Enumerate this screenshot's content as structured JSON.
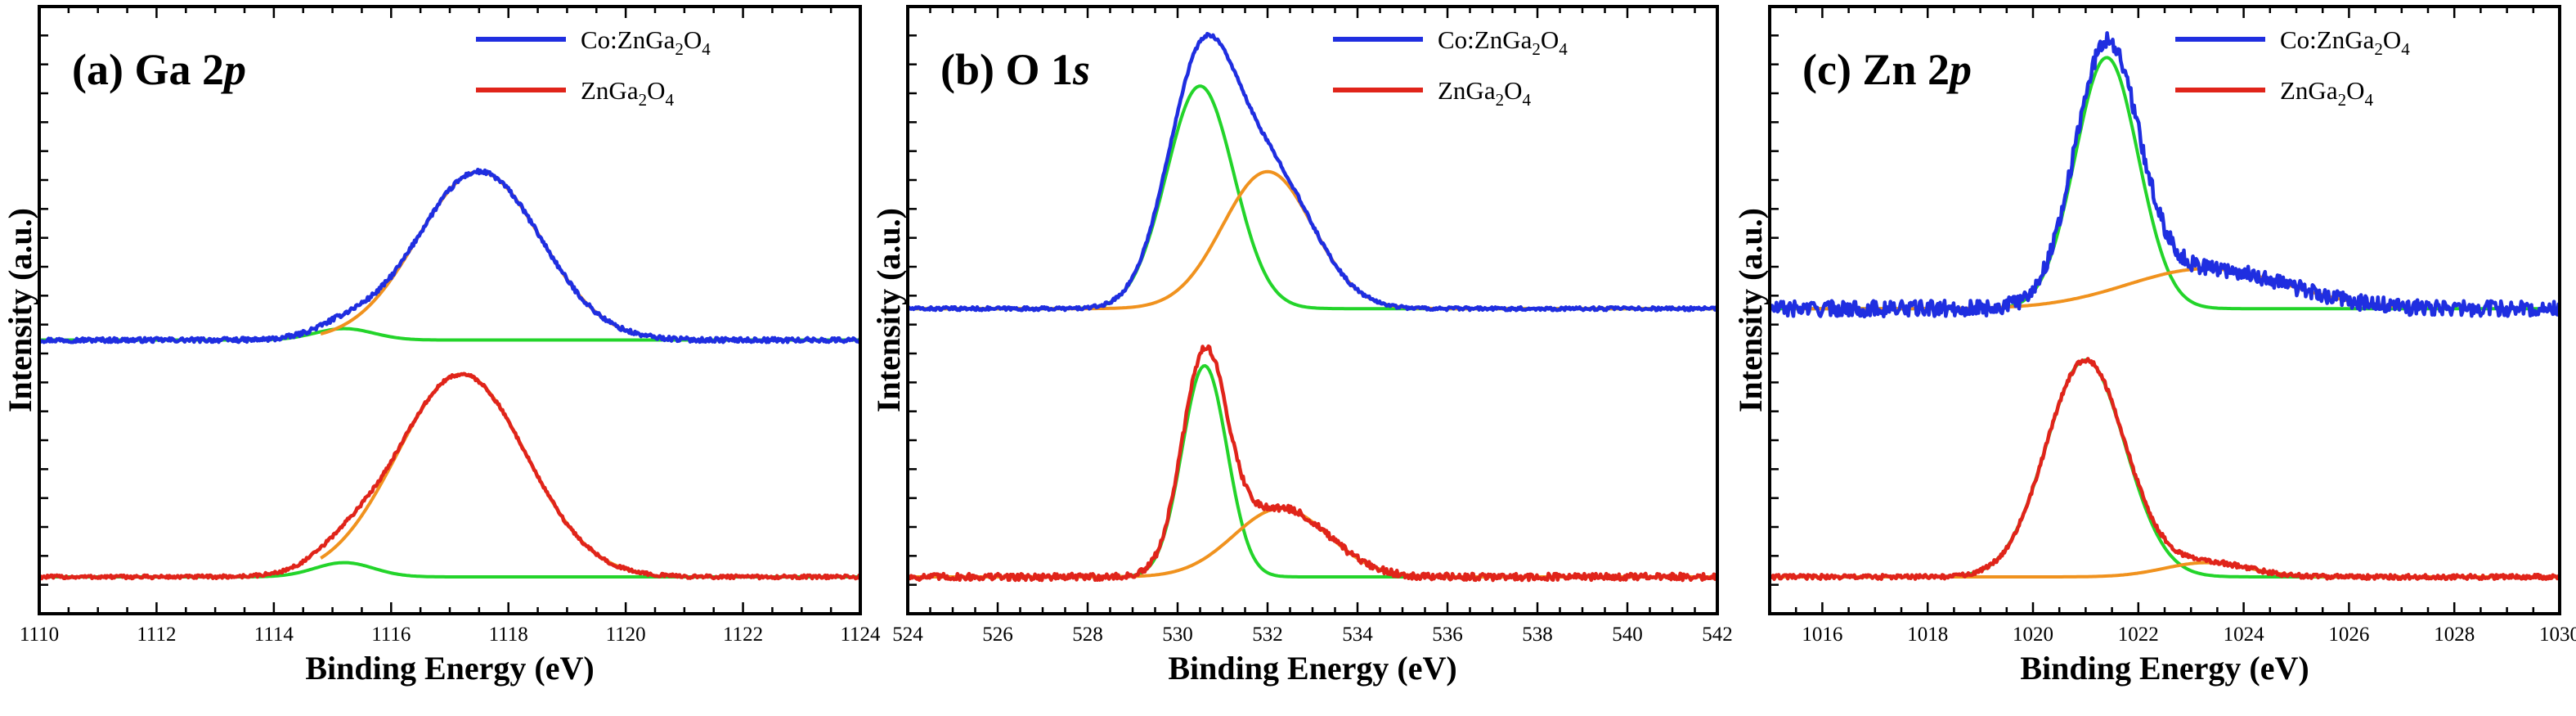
{
  "colors": {
    "co_doped": "#1f2ee0",
    "undoped": "#e0241a",
    "component_low": "#23d42a",
    "component_high": "#f0921e",
    "frame": "#000000"
  },
  "chart_data": [
    {
      "type": "line",
      "panel_label": "(a) Ga 2p",
      "panel_label_parts": [
        "(a) Ga 2",
        "p"
      ],
      "xlabel": "Binding Energy (eV)",
      "ylabel": "Intensity (a.u.)",
      "xlim": [
        1110,
        1124
      ],
      "xticks": [
        1110,
        1112,
        1114,
        1116,
        1118,
        1120,
        1122,
        1124
      ],
      "xtick_labels": [
        "1110",
        "1112",
        "1114",
        "1116",
        "1118",
        "1120",
        "1122",
        "1124"
      ],
      "y_ticks_labeled": false,
      "legend": {
        "placement": "top-right",
        "entries": [
          {
            "series": "co_doped",
            "parts": [
              "Co:ZnGa",
              "2",
              "O",
              "4"
            ]
          },
          {
            "series": "undoped",
            "parts": [
              "ZnGa",
              "2",
              "O",
              "4"
            ]
          }
        ]
      },
      "series": [
        {
          "name": "Co:ZnGa2O4",
          "role": "co_doped",
          "offset": 0.415,
          "peaks": [
            {
              "center": 1117.5,
              "height": 0.295,
              "sigma": 1.05
            },
            {
              "center": 1115.2,
              "height": 0.02,
              "sigma": 0.5
            }
          ],
          "noise": 0.004
        },
        {
          "name": "ZnGa2O4",
          "role": "undoped",
          "offset": 0.0,
          "peaks": [
            {
              "center": 1117.2,
              "height": 0.355,
              "sigma": 1.1
            },
            {
              "center": 1115.2,
              "height": 0.025,
              "sigma": 0.5
            }
          ],
          "noise": 0.003
        }
      ],
      "components": [
        {
          "role": "component_low",
          "offset": 0.415,
          "peaks": [
            {
              "center": 1115.2,
              "height": 0.02,
              "sigma": 0.5
            }
          ]
        },
        {
          "role": "component_low",
          "offset": 0.0,
          "peaks": [
            {
              "center": 1115.2,
              "height": 0.025,
              "sigma": 0.5
            }
          ]
        },
        {
          "role": "component_high",
          "offset": 0.415,
          "peaks": [
            {
              "center": 1117.5,
              "height": 0.295,
              "sigma": 1.05
            }
          ],
          "xmin": 1114.8,
          "xmax": 1120.2
        },
        {
          "role": "component_high",
          "offset": 0.0,
          "peaks": [
            {
              "center": 1117.2,
              "height": 0.355,
              "sigma": 1.1
            }
          ],
          "xmin": 1114.8,
          "xmax": 1120.2
        }
      ]
    },
    {
      "type": "line",
      "panel_label": "(b) O 1s",
      "panel_label_parts": [
        "(b) O 1",
        "s"
      ],
      "xlabel": "Binding Energy (eV)",
      "ylabel": "Intensity (a.u.)",
      "xlim": [
        524,
        542
      ],
      "xticks": [
        524,
        526,
        528,
        530,
        532,
        534,
        536,
        538,
        540,
        542
      ],
      "xtick_labels": [
        "524",
        "526",
        "528",
        "530",
        "532",
        "534",
        "536",
        "538",
        "540",
        "542"
      ],
      "y_ticks_labeled": false,
      "legend": {
        "placement": "top-right",
        "entries": [
          {
            "series": "co_doped",
            "parts": [
              "Co:ZnGa",
              "2",
              "O",
              "4"
            ]
          },
          {
            "series": "undoped",
            "parts": [
              "ZnGa",
              "2",
              "O",
              "4"
            ]
          }
        ]
      },
      "series": [
        {
          "name": "Co:ZnGa2O4",
          "role": "co_doped",
          "offset": 0.47,
          "peaks": [
            {
              "center": 530.5,
              "height": 0.39,
              "sigma": 0.75
            },
            {
              "center": 532.0,
              "height": 0.24,
              "sigma": 1.0
            }
          ],
          "noise": 0.003
        },
        {
          "name": "ZnGa2O4",
          "role": "undoped",
          "offset": 0.0,
          "peaks": [
            {
              "center": 530.6,
              "height": 0.37,
              "sigma": 0.5
            },
            {
              "center": 532.3,
              "height": 0.12,
              "sigma": 1.05
            }
          ],
          "noise": 0.006
        }
      ],
      "components": [
        {
          "role": "component_low",
          "offset": 0.47,
          "peaks": [
            {
              "center": 530.5,
              "height": 0.39,
              "sigma": 0.75
            }
          ]
        },
        {
          "role": "component_high",
          "offset": 0.47,
          "peaks": [
            {
              "center": 532.0,
              "height": 0.24,
              "sigma": 1.0
            }
          ]
        },
        {
          "role": "component_low",
          "offset": 0.0,
          "peaks": [
            {
              "center": 530.6,
              "height": 0.37,
              "sigma": 0.5
            }
          ]
        },
        {
          "role": "component_high",
          "offset": 0.0,
          "peaks": [
            {
              "center": 532.3,
              "height": 0.12,
              "sigma": 1.05
            }
          ]
        }
      ]
    },
    {
      "type": "line",
      "panel_label": "(c) Zn 2p",
      "panel_label_parts": [
        "(c) Zn 2",
        "p"
      ],
      "xlabel": "Binding Energy (eV)",
      "ylabel": "Intensity (a.u.)",
      "xlim": [
        1015,
        1030
      ],
      "xticks": [
        1016,
        1018,
        1020,
        1022,
        1024,
        1026,
        1028,
        1030
      ],
      "xtick_labels": [
        "1016",
        "1018",
        "1020",
        "1022",
        "1024",
        "1026",
        "1028",
        "1030"
      ],
      "y_ticks_labeled": false,
      "legend": {
        "placement": "top-right",
        "entries": [
          {
            "series": "co_doped",
            "parts": [
              "Co:ZnGa",
              "2",
              "O",
              "4"
            ]
          },
          {
            "series": "undoped",
            "parts": [
              "ZnGa",
              "2",
              "O",
              "4"
            ]
          }
        ]
      },
      "series": [
        {
          "name": "Co:ZnGa2O4",
          "role": "co_doped",
          "offset": 0.47,
          "peaks": [
            {
              "center": 1021.4,
              "height": 0.44,
              "sigma": 0.6
            },
            {
              "center": 1023.3,
              "height": 0.07,
              "sigma": 1.5
            }
          ],
          "noise": 0.014
        },
        {
          "name": "ZnGa2O4",
          "role": "undoped",
          "offset": 0.0,
          "peaks": [
            {
              "center": 1021.0,
              "height": 0.38,
              "sigma": 0.75
            },
            {
              "center": 1023.3,
              "height": 0.025,
              "sigma": 0.8
            }
          ],
          "noise": 0.004
        }
      ],
      "components": [
        {
          "role": "component_low",
          "offset": 0.47,
          "peaks": [
            {
              "center": 1021.4,
              "height": 0.44,
              "sigma": 0.6
            }
          ]
        },
        {
          "role": "component_high",
          "offset": 0.47,
          "peaks": [
            {
              "center": 1023.3,
              "height": 0.07,
              "sigma": 1.5
            }
          ],
          "xmin": 1015.5,
          "xmax": 1027.0
        },
        {
          "role": "component_low",
          "offset": 0.0,
          "peaks": [
            {
              "center": 1021.0,
              "height": 0.38,
              "sigma": 0.75
            }
          ]
        },
        {
          "role": "component_high",
          "offset": 0.0,
          "peaks": [
            {
              "center": 1023.3,
              "height": 0.025,
              "sigma": 0.8
            }
          ]
        }
      ]
    }
  ]
}
